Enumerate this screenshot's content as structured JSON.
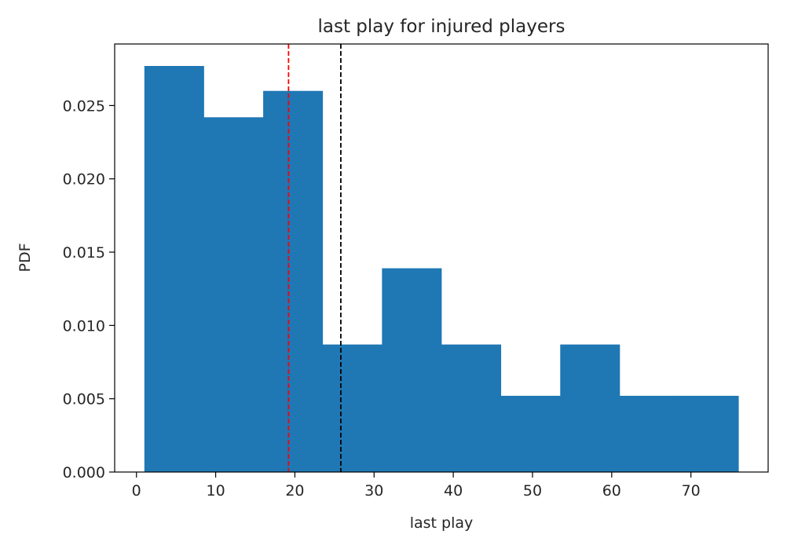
{
  "chart_data": {
    "type": "bar",
    "title": "last play for injured players",
    "xlabel": "last play",
    "ylabel": "PDF",
    "xlim": [
      -2.75,
      79.75
    ],
    "ylim": [
      0,
      0.0292
    ],
    "xticks": [
      0,
      10,
      20,
      30,
      40,
      50,
      60,
      70
    ],
    "yticks": [
      0.0,
      0.005,
      0.01,
      0.015,
      0.02,
      0.025
    ],
    "ytick_labels": [
      "0.000",
      "0.005",
      "0.010",
      "0.015",
      "0.020",
      "0.025"
    ],
    "grid": false,
    "bins": [
      {
        "x0": 1.0,
        "x1": 8.5,
        "value": 0.0277
      },
      {
        "x0": 8.5,
        "x1": 16.0,
        "value": 0.0242
      },
      {
        "x0": 16.0,
        "x1": 23.5,
        "value": 0.026
      },
      {
        "x0": 23.5,
        "x1": 31.0,
        "value": 0.0087
      },
      {
        "x0": 31.0,
        "x1": 38.5,
        "value": 0.0139
      },
      {
        "x0": 38.5,
        "x1": 46.0,
        "value": 0.0087
      },
      {
        "x0": 46.0,
        "x1": 53.5,
        "value": 0.0052
      },
      {
        "x0": 53.5,
        "x1": 61.0,
        "value": 0.0087
      },
      {
        "x0": 61.0,
        "x1": 68.5,
        "value": 0.0052
      },
      {
        "x0": 68.5,
        "x1": 76.0,
        "value": 0.0052
      }
    ],
    "bar_color": "#1f77b4",
    "reference_lines": [
      {
        "x": 19.2,
        "color": "#ff0000",
        "style": "dashed"
      },
      {
        "x": 25.8,
        "color": "#000000",
        "style": "dashed"
      }
    ]
  }
}
